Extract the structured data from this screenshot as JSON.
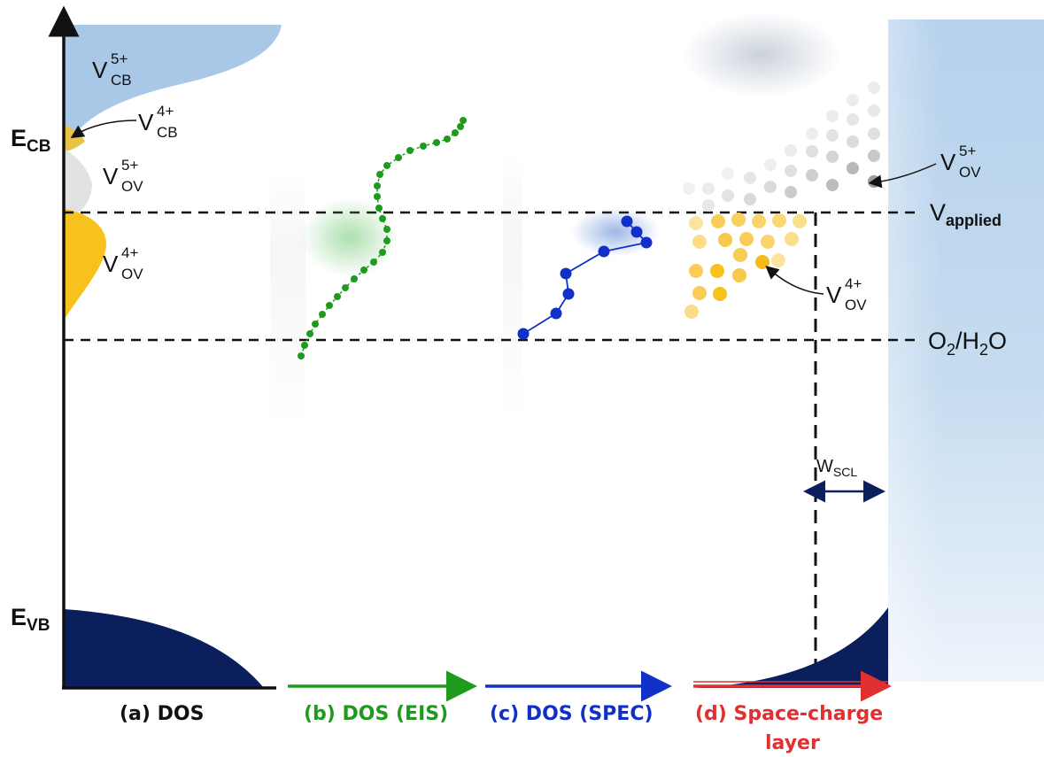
{
  "axis_labels": {
    "ecb_main": "E",
    "ecb_sub": "CB",
    "evb_main": "E",
    "evb_sub": "VB"
  },
  "states": {
    "v_cb_5": {
      "main": "V",
      "sup": "5+",
      "sub": "CB"
    },
    "v_cb_4": {
      "main": "V",
      "sup": "4+",
      "sub": "CB"
    },
    "v_ov_5_left": {
      "main": "V",
      "sup": "5+",
      "sub": "OV"
    },
    "v_ov_4_left": {
      "main": "V",
      "sup": "4+",
      "sub": "OV"
    },
    "v_ov_5_right": {
      "main": "V",
      "sup": "5+",
      "sub": "OV"
    },
    "v_ov_4_right": {
      "main": "V",
      "sup": "4+",
      "sub": "OV"
    }
  },
  "levels": {
    "applied_main": "V",
    "applied_sub": "applied",
    "redox": "O₂/H₂O",
    "redox_parts": {
      "a": "O",
      "b": "2",
      "c": "/H",
      "d": "2",
      "e": "O"
    }
  },
  "wscl": {
    "main": "W",
    "sub": "SCL"
  },
  "captions": {
    "a": "(a) DOS",
    "b": "(b) DOS (EIS)",
    "c": "(c) DOS (SPEC)",
    "d_line1": "(d) Space-charge",
    "d_line2": "layer"
  },
  "colors": {
    "cb_band": "#a9c7e6",
    "v4_yellow": "#f7c21b",
    "vb_band": "#0b1f5c",
    "eis_green": "#1e9a1e",
    "spec_blue": "#1030c8",
    "scl_red": "#e03030",
    "electrolyte": "#b8d3ec"
  }
}
